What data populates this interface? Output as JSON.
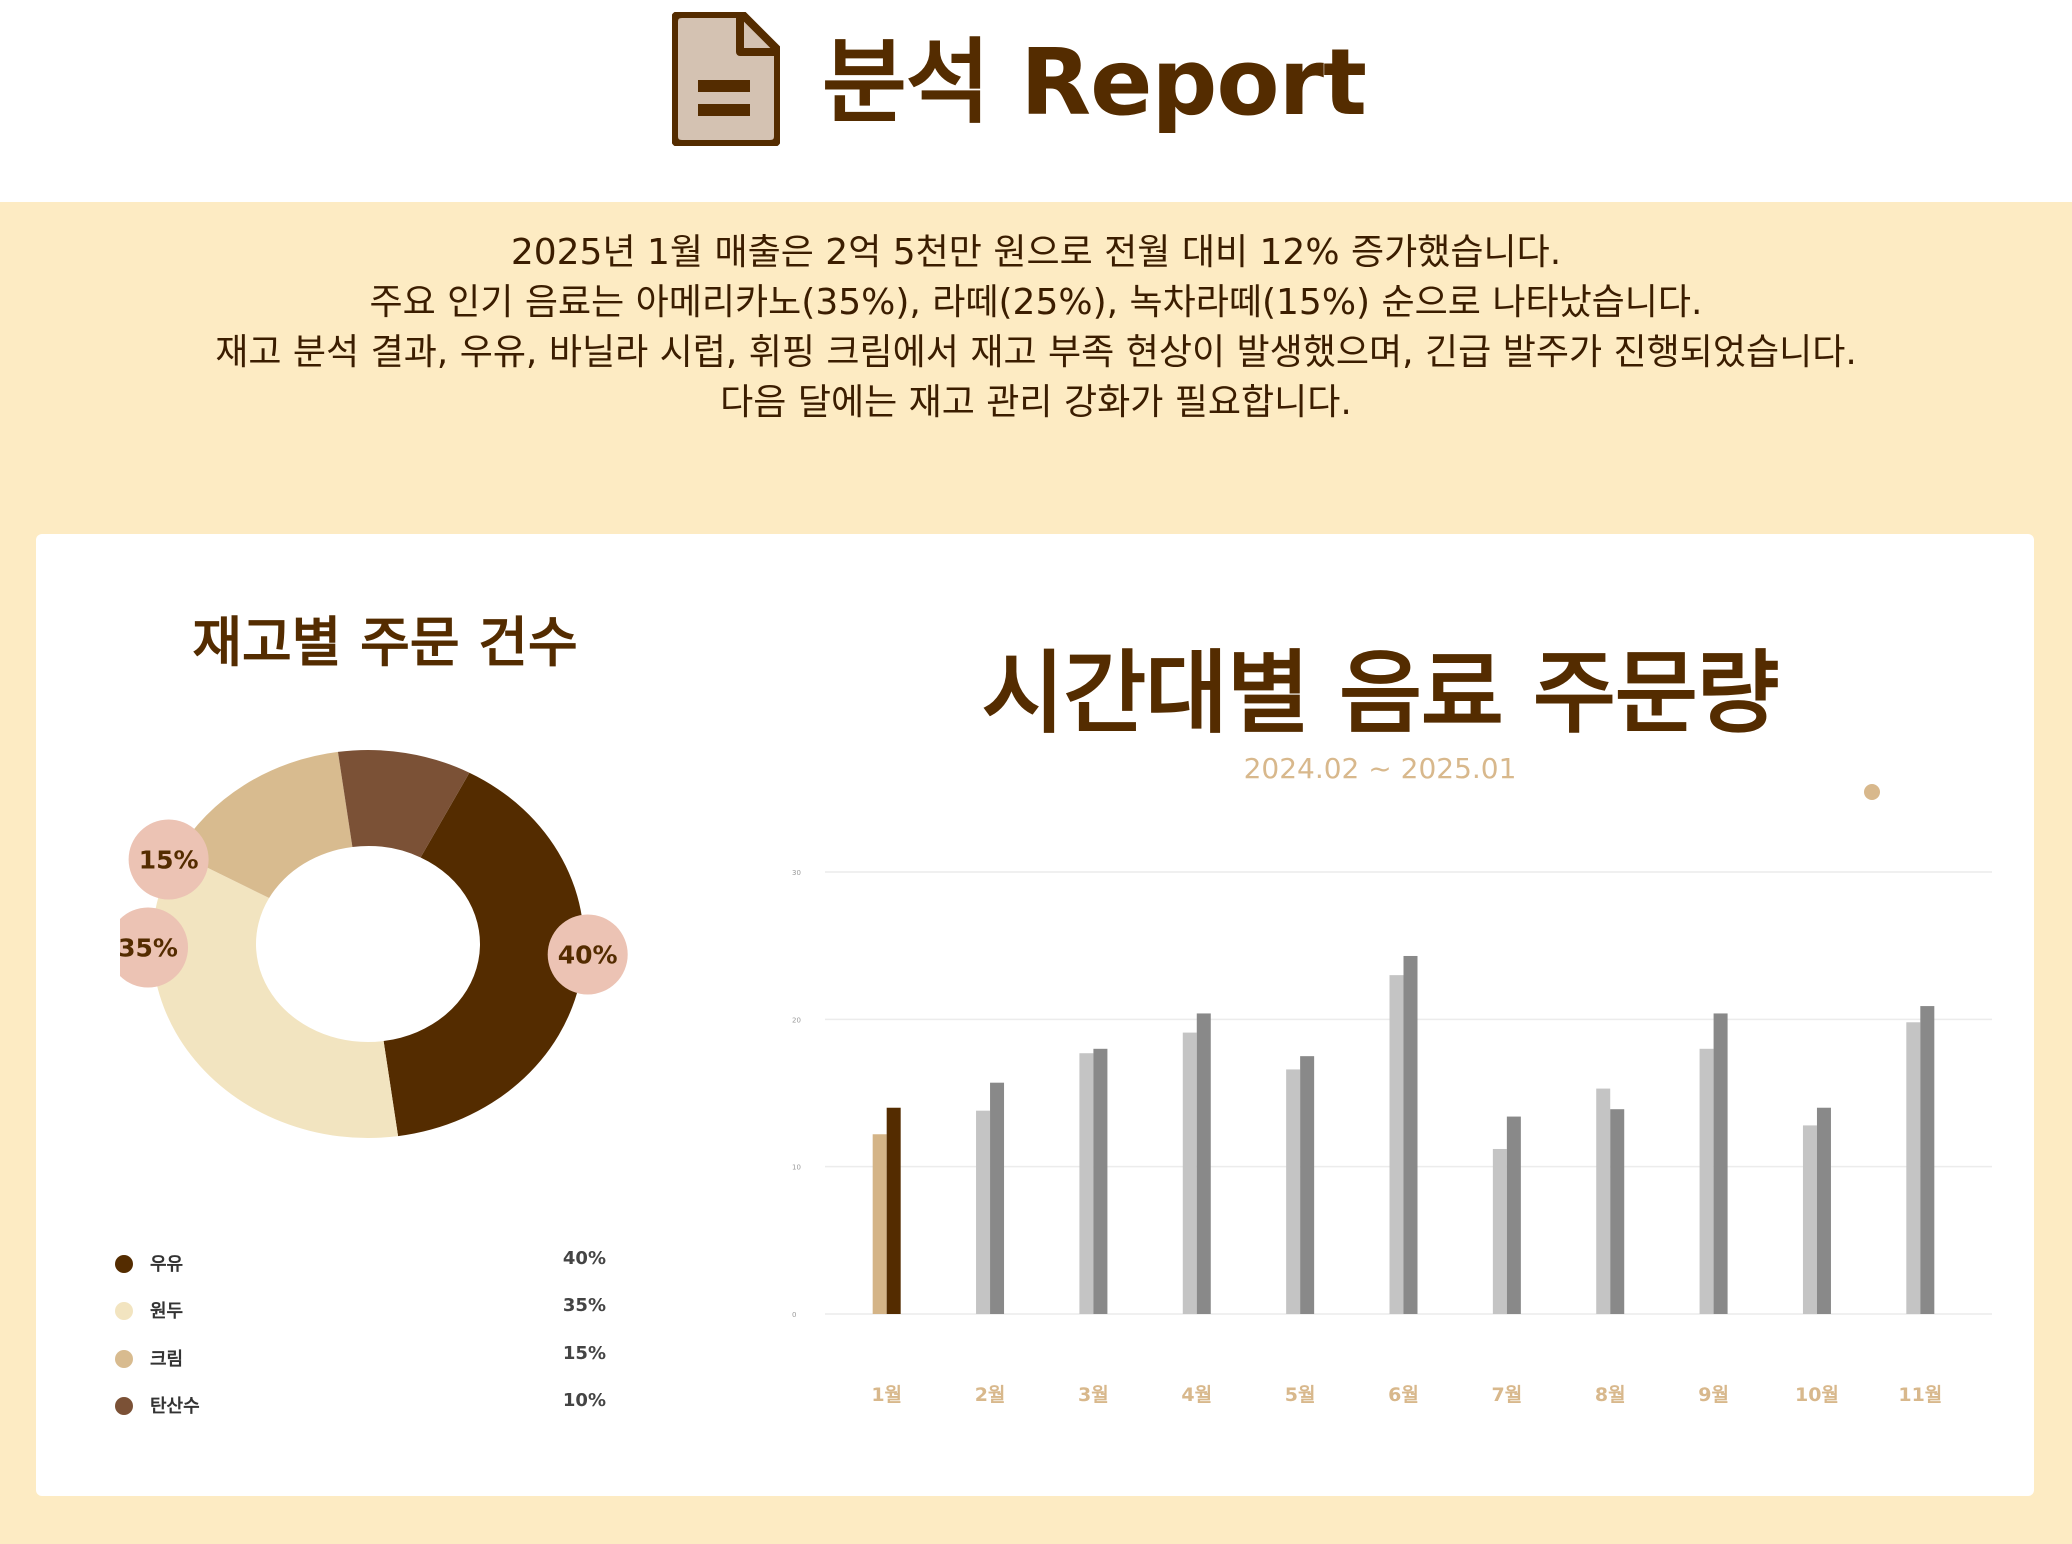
{
  "header": {
    "title": "분석 Report",
    "icon": "document-icon"
  },
  "summary": {
    "lines": [
      "2025년 1월 매출은 2억 5천만 원으로 전월 대비 12% 증가했습니다.",
      "주요 인기 음료는 아메리카노(35%), 라떼(25%), 녹차라떼(15%) 순으로 나타났습니다.",
      "재고 분석 결과, 우유, 바닐라 시럽, 휘핑 크림에서 재고 부족 현상이 발생했으며, 긴급 발주가 진행되었습니다.",
      "다음 달에는 재고 관리 강화가 필요합니다."
    ]
  },
  "colors": {
    "brand_brown": "#542c00",
    "background_cream": "#fdebc3",
    "milk": "#542c00",
    "beans": "#f2e4c0",
    "cream": "#d8bb8f",
    "soda": "#7b5136",
    "badge": "#ecc3b4",
    "gray_light": "#c4c4c4",
    "gray_dark": "#898989",
    "highlight_light": "#d4b487",
    "accent_tan": "#d8b88c"
  },
  "chart_data": [
    {
      "type": "pie",
      "title": "재고별 주문 건수",
      "labels": [
        "우유",
        "원두",
        "크림",
        "탄산수"
      ],
      "values": [
        40,
        35,
        15,
        10
      ],
      "value_labels": [
        "40%",
        "35%",
        "15%",
        "10%"
      ],
      "badge_labels": [
        "40%",
        "35%",
        "15%"
      ],
      "colors": [
        "#542c00",
        "#f2e4c0",
        "#d8bb8f",
        "#7b5136"
      ],
      "legend": "bottom"
    },
    {
      "type": "bar",
      "title": "시간대별 음료 주문량",
      "subtitle": "2024.02 ~ 2025.01",
      "categories": [
        "1월",
        "2월",
        "3월",
        "4월",
        "5월",
        "6월",
        "7월",
        "8월",
        "9월",
        "10월",
        "11월"
      ],
      "series": [
        {
          "values": [
            12.2,
            13.8,
            17.7,
            19.1,
            16.6,
            23.0,
            11.2,
            15.3,
            18.0,
            12.8,
            19.8
          ]
        },
        {
          "values": [
            14.0,
            15.7,
            18.0,
            20.4,
            17.5,
            24.3,
            13.4,
            13.9,
            20.4,
            14.0,
            20.9
          ]
        }
      ],
      "y_ticks": [
        "0",
        "10",
        "20",
        "30"
      ],
      "ylim": [
        0,
        30
      ],
      "highlight_category": "1월",
      "grid": true
    }
  ]
}
